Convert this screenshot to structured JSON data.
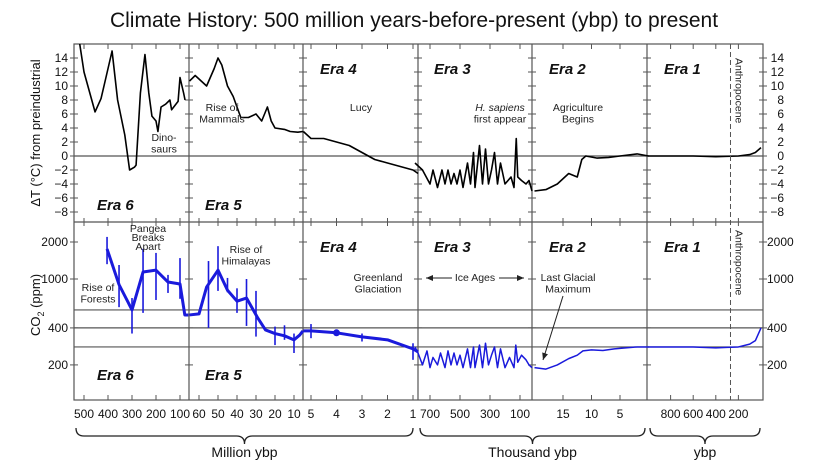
{
  "chart_data": {
    "type": "line",
    "title": "Climate History: 500 million years-before-present (ybp) to present",
    "grid": false,
    "temperature_axis": {
      "label": "ΔT (°C) from preindustrial",
      "ylim": [
        -9,
        15
      ],
      "ticks": [
        14,
        12,
        10,
        8,
        6,
        4,
        2,
        0,
        -2,
        -4,
        -6,
        -8
      ]
    },
    "co2_axis": {
      "label_main": "CO",
      "label_sub": "2",
      "label_unit": " (ppm)",
      "scale": "log",
      "ylim": [
        105,
        2900
      ],
      "ticks": [
        2000,
        1000,
        400,
        200
      ],
      "reference_lines": [
        560,
        400,
        280
      ]
    },
    "x_groups": [
      {
        "label": "Million ybp",
        "eras": [
          "e6",
          "e5",
          "e4"
        ]
      },
      {
        "label": "Thousand ybp",
        "eras": [
          "e3",
          "e2"
        ]
      },
      {
        "label": "ybp",
        "eras": [
          "e1"
        ]
      }
    ],
    "colors": {
      "temperature": "#000000",
      "co2": "#1a1adc",
      "axis": "#555555"
    },
    "anthropocene": {
      "label": "Anthropocene",
      "x": 270
    },
    "eras": [
      {
        "id": "e6",
        "label": "Era 6",
        "unit": "Myr",
        "ticks": [
          500,
          400,
          300,
          200,
          100
        ],
        "temperature": [
          [
            520,
            16.5
          ],
          [
            500,
            12
          ],
          [
            454,
            6.3
          ],
          [
            429,
            8.2
          ],
          [
            410,
            11
          ],
          [
            383,
            15
          ],
          [
            360,
            8
          ],
          [
            330,
            3
          ],
          [
            310,
            -2
          ],
          [
            290,
            -1.6
          ],
          [
            283,
            -1.3
          ],
          [
            265,
            9
          ],
          [
            246,
            14.5
          ],
          [
            230,
            9
          ],
          [
            217,
            5.7
          ],
          [
            200,
            5
          ],
          [
            192,
            3.5
          ],
          [
            179,
            7
          ],
          [
            160,
            7.4
          ],
          [
            142,
            8
          ],
          [
            135,
            6.6
          ],
          [
            108,
            7.8
          ],
          [
            100,
            11.2
          ],
          [
            85,
            9
          ],
          [
            79,
            8
          ]
        ],
        "co2": [
          [
            404,
            1756
          ],
          [
            354,
            900
          ],
          [
            300,
            560
          ],
          [
            254,
            1140
          ],
          [
            200,
            1180
          ],
          [
            150,
            945
          ],
          [
            100,
            910
          ],
          [
            80,
            510
          ],
          [
            65,
            510
          ]
        ],
        "co2_error": [
          [
            404,
            1320,
            2200
          ],
          [
            354,
            590,
            1300
          ],
          [
            300,
            360,
            700
          ],
          [
            254,
            530,
            1760
          ],
          [
            200,
            675,
            1630
          ],
          [
            150,
            770,
            1080
          ],
          [
            100,
            690,
            1480
          ]
        ]
      },
      {
        "id": "e5",
        "label": "Era 5",
        "unit": "Myr",
        "ticks": [
          60,
          50,
          40,
          30,
          20,
          10
        ],
        "temperature": [
          [
            65,
            10.7
          ],
          [
            62,
            11.5
          ],
          [
            60,
            11
          ],
          [
            56,
            10
          ],
          [
            52,
            12.5
          ],
          [
            50,
            14
          ],
          [
            48,
            13
          ],
          [
            45,
            10
          ],
          [
            42,
            8.5
          ],
          [
            40,
            7
          ],
          [
            38,
            5.5
          ],
          [
            34,
            5.5
          ],
          [
            30,
            6
          ],
          [
            27,
            5
          ],
          [
            24,
            7
          ],
          [
            22,
            5
          ],
          [
            20,
            4
          ],
          [
            15,
            3.8
          ],
          [
            12,
            3.5
          ],
          [
            8,
            3.4
          ],
          [
            5.3,
            3.5
          ]
        ],
        "co2": [
          [
            65,
            510
          ],
          [
            60,
            520
          ],
          [
            56,
            860
          ],
          [
            50,
            1180
          ],
          [
            45,
            810
          ],
          [
            40,
            660
          ],
          [
            35,
            700
          ],
          [
            29,
            480
          ],
          [
            25,
            385
          ],
          [
            20,
            360
          ],
          [
            15,
            345
          ],
          [
            10,
            320
          ],
          [
            7,
            350
          ],
          [
            5.3,
            378
          ]
        ],
        "co2_error": [
          [
            55,
            400,
            1400
          ],
          [
            50,
            800,
            1850
          ],
          [
            45,
            780,
            1020
          ],
          [
            40,
            530,
            840
          ],
          [
            35,
            415,
            1000
          ],
          [
            30,
            340,
            800
          ],
          [
            20,
            290,
            410
          ],
          [
            15,
            320,
            420
          ],
          [
            10,
            250,
            360
          ]
        ]
      },
      {
        "id": "e4",
        "label": "Era 4",
        "unit": "Myr",
        "ticks": [
          5,
          4,
          3,
          2,
          1
        ],
        "temperature": [
          [
            5.3,
            3.5
          ],
          [
            5,
            2.5
          ],
          [
            4.5,
            2.5
          ],
          [
            4,
            2
          ],
          [
            3.5,
            1.5
          ],
          [
            3,
            0.5
          ],
          [
            2.5,
            -0.5
          ],
          [
            2,
            -1
          ],
          [
            1.5,
            -1.5
          ],
          [
            1,
            -2
          ],
          [
            0.8,
            -2.5
          ]
        ],
        "co2": [
          [
            5.3,
            378
          ],
          [
            5,
            378
          ],
          [
            4,
            365
          ],
          [
            3,
            338
          ],
          [
            2,
            320
          ],
          [
            1,
            270
          ],
          [
            0.8,
            255
          ]
        ],
        "co2_error": [
          [
            5,
            330,
            430
          ],
          [
            3,
            310,
            360
          ],
          [
            1,
            220,
            300
          ]
        ],
        "co2_marker": [
          4,
          365
        ]
      },
      {
        "id": "e3",
        "label": "Era 3",
        "unit": "kyr",
        "ticks": [
          700,
          500,
          300,
          100
        ],
        "temperature": [
          [
            800,
            -1
          ],
          [
            750,
            -2
          ],
          [
            700,
            -4
          ],
          [
            680,
            -2
          ],
          [
            650,
            -4.5
          ],
          [
            620,
            -2
          ],
          [
            600,
            -4
          ],
          [
            580,
            -2
          ],
          [
            560,
            -4
          ],
          [
            540,
            -2.5
          ],
          [
            520,
            -4
          ],
          [
            500,
            -2
          ],
          [
            480,
            -4.5
          ],
          [
            450,
            -1
          ],
          [
            430,
            -4
          ],
          [
            410,
            0.5
          ],
          [
            400,
            -4.5
          ],
          [
            370,
            1.5
          ],
          [
            350,
            -4
          ],
          [
            330,
            1
          ],
          [
            310,
            -4
          ],
          [
            290,
            -2
          ],
          [
            270,
            0.5
          ],
          [
            250,
            -4
          ],
          [
            230,
            -1
          ],
          [
            200,
            -4
          ],
          [
            160,
            -3
          ],
          [
            140,
            -4.5
          ],
          [
            125,
            2.5
          ],
          [
            115,
            -3
          ],
          [
            90,
            -3.5
          ],
          [
            60,
            -4
          ],
          [
            40,
            -3.5
          ],
          [
            20,
            -5
          ]
        ],
        "co2": [
          [
            800,
            280
          ],
          [
            780,
            250
          ],
          [
            750,
            200
          ],
          [
            720,
            260
          ],
          [
            700,
            190
          ],
          [
            680,
            230
          ],
          [
            650,
            200
          ],
          [
            630,
            250
          ],
          [
            600,
            190
          ],
          [
            580,
            260
          ],
          [
            560,
            200
          ],
          [
            540,
            250
          ],
          [
            520,
            200
          ],
          [
            500,
            240
          ],
          [
            480,
            190
          ],
          [
            450,
            270
          ],
          [
            430,
            190
          ],
          [
            410,
            280
          ],
          [
            400,
            190
          ],
          [
            370,
            290
          ],
          [
            350,
            190
          ],
          [
            330,
            300
          ],
          [
            310,
            200
          ],
          [
            290,
            240
          ],
          [
            270,
            280
          ],
          [
            250,
            190
          ],
          [
            230,
            270
          ],
          [
            200,
            190
          ],
          [
            170,
            230
          ],
          [
            140,
            190
          ],
          [
            128,
            290
          ],
          [
            115,
            210
          ],
          [
            90,
            240
          ],
          [
            60,
            220
          ],
          [
            40,
            200
          ],
          [
            20,
            190
          ]
        ]
      },
      {
        "id": "e2",
        "label": "Era 2",
        "unit": "kyr",
        "ticks": [
          15,
          10,
          5
        ],
        "temperature": [
          [
            20,
            -5
          ],
          [
            18,
            -4.8
          ],
          [
            16,
            -4
          ],
          [
            14,
            -2.5
          ],
          [
            12.5,
            -3
          ],
          [
            11.7,
            -0.5
          ],
          [
            11,
            0
          ],
          [
            9,
            -0.3
          ],
          [
            7,
            -0.2
          ],
          [
            5,
            0
          ],
          [
            2,
            0.3
          ],
          [
            0,
            0
          ]
        ],
        "co2": [
          [
            20,
            190
          ],
          [
            18,
            185
          ],
          [
            16,
            200
          ],
          [
            14,
            225
          ],
          [
            12.5,
            240
          ],
          [
            11.5,
            260
          ],
          [
            10,
            265
          ],
          [
            8,
            262
          ],
          [
            6,
            270
          ],
          [
            4,
            275
          ],
          [
            2,
            280
          ],
          [
            0,
            280
          ]
        ]
      },
      {
        "id": "e1",
        "label": "Era 1",
        "unit": "yr",
        "ticks": [
          800,
          600,
          400,
          200
        ],
        "temperature": [
          [
            1000,
            0
          ],
          [
            800,
            0
          ],
          [
            600,
            0
          ],
          [
            400,
            -0.1
          ],
          [
            200,
            0
          ],
          [
            100,
            0.2
          ],
          [
            50,
            0.5
          ],
          [
            0,
            1.2
          ]
        ],
        "co2": [
          [
            1000,
            280
          ],
          [
            600,
            280
          ],
          [
            400,
            275
          ],
          [
            300,
            278
          ],
          [
            200,
            280
          ],
          [
            100,
            295
          ],
          [
            50,
            315
          ],
          [
            0,
            400
          ]
        ]
      }
    ],
    "annotations_temperature": [
      {
        "lines": [
          "Dino-",
          "saurs"
        ]
      },
      {
        "lines": [
          "Rise of",
          "Mammals"
        ]
      },
      {
        "lines": [
          "Lucy"
        ]
      },
      {
        "lines": [
          "H. sapiens",
          "first appear"
        ],
        "italic_first": true
      },
      {
        "lines": [
          "Agriculture",
          "Begins"
        ]
      }
    ],
    "annotations_co2": [
      {
        "lines": [
          "Pangea",
          "Breaks",
          "Apart"
        ]
      },
      {
        "lines": [
          "Rise of",
          "Forests"
        ]
      },
      {
        "lines": [
          "Rise of",
          "Himalayas"
        ]
      },
      {
        "lines": [
          "Greenland",
          "Glaciation"
        ]
      },
      {
        "lines": [
          "Ice Ages"
        ]
      },
      {
        "lines": [
          "Last Glacial",
          "Maximum"
        ]
      }
    ]
  }
}
